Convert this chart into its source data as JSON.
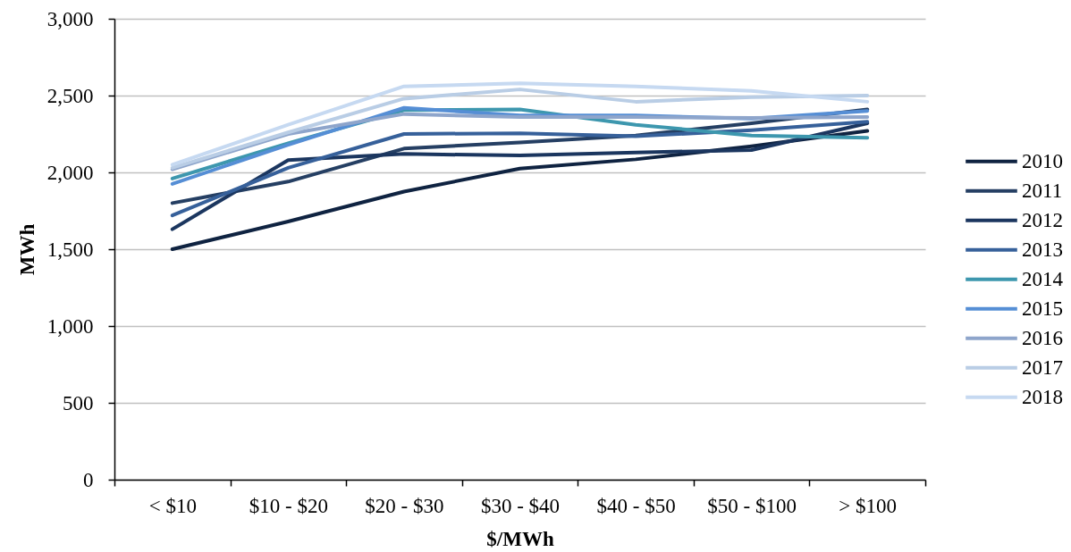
{
  "chart_data": {
    "type": "line",
    "xlabel": "$/MWh",
    "ylabel": "MWh",
    "categories": [
      "< $10",
      "$10 - $20",
      "$20 - $30",
      "$30 - $40",
      "$40 - $50",
      "$50 - $100",
      "> $100"
    ],
    "series": [
      {
        "name": "2010",
        "color": "#0f2341",
        "values": [
          1500,
          1680,
          1875,
          2025,
          2085,
          2170,
          2270
        ]
      },
      {
        "name": "2011",
        "color": "#253f63",
        "values": [
          1800,
          1940,
          2155,
          2195,
          2240,
          2320,
          2410
        ]
      },
      {
        "name": "2012",
        "color": "#1b365f",
        "values": [
          1630,
          2080,
          2120,
          2110,
          2130,
          2145,
          2320
        ]
      },
      {
        "name": "2013",
        "color": "#36609a",
        "values": [
          1720,
          2030,
          2250,
          2255,
          2235,
          2275,
          2330
        ]
      },
      {
        "name": "2014",
        "color": "#3d97ae",
        "values": [
          1960,
          2190,
          2405,
          2410,
          2310,
          2240,
          2225
        ]
      },
      {
        "name": "2015",
        "color": "#558ed5",
        "values": [
          1925,
          2180,
          2420,
          2370,
          2370,
          2350,
          2400
        ]
      },
      {
        "name": "2016",
        "color": "#8ea5cb",
        "values": [
          2020,
          2250,
          2380,
          2360,
          2360,
          2355,
          2360
        ]
      },
      {
        "name": "2017",
        "color": "#b9cde5",
        "values": [
          2030,
          2260,
          2480,
          2540,
          2460,
          2490,
          2500
        ]
      },
      {
        "name": "2018",
        "color": "#c6d9f1",
        "values": [
          2050,
          2310,
          2560,
          2580,
          2560,
          2530,
          2460
        ]
      }
    ],
    "ylim": [
      0,
      3000
    ],
    "yticks": [
      0,
      500,
      {
        "value": 1000,
        "label": "1,000"
      },
      {
        "value": 1500,
        "label": "1,500"
      },
      {
        "value": 2000,
        "label": "2,000"
      },
      {
        "value": 2500,
        "label": "2,500"
      },
      {
        "value": 3000,
        "label": "3,000"
      }
    ],
    "grid": "y",
    "legend": "right",
    "line_style": "solid"
  }
}
